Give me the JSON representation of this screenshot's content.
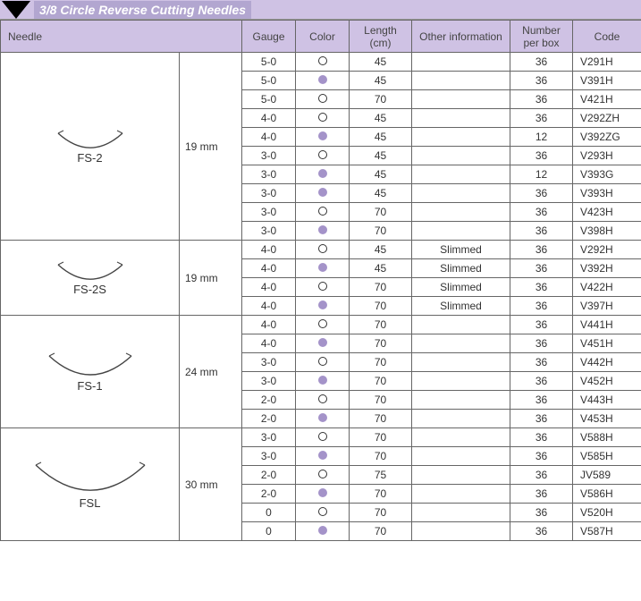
{
  "title": "3/8 Circle Reverse Cutting Needles",
  "columns": {
    "needle": "Needle",
    "gauge": "Gauge",
    "color": "Color",
    "length": "Length (cm)",
    "other": "Other information",
    "numPerBox": "Number per box",
    "code": "Code"
  },
  "colors": {
    "header_bg": "#cfc2e4",
    "title_bg": "#b2a6d0",
    "filled_circle": "#a493c9",
    "border": "#666666"
  },
  "groups": [
    {
      "needle_label": "FS-2",
      "size": "19 mm",
      "arc_width": 80,
      "rows": [
        {
          "gauge": "5-0",
          "color": "open",
          "length": "45",
          "other": "",
          "num": "36",
          "code": "V291H"
        },
        {
          "gauge": "5-0",
          "color": "filled",
          "length": "45",
          "other": "",
          "num": "36",
          "code": "V391H"
        },
        {
          "gauge": "5-0",
          "color": "open",
          "length": "70",
          "other": "",
          "num": "36",
          "code": "V421H"
        },
        {
          "gauge": "4-0",
          "color": "open",
          "length": "45",
          "other": "",
          "num": "36",
          "code": "V292ZH"
        },
        {
          "gauge": "4-0",
          "color": "filled",
          "length": "45",
          "other": "",
          "num": "12",
          "code": "V392ZG"
        },
        {
          "gauge": "3-0",
          "color": "open",
          "length": "45",
          "other": "",
          "num": "36",
          "code": "V293H"
        },
        {
          "gauge": "3-0",
          "color": "filled",
          "length": "45",
          "other": "",
          "num": "12",
          "code": "V393G"
        },
        {
          "gauge": "3-0",
          "color": "filled",
          "length": "45",
          "other": "",
          "num": "36",
          "code": "V393H"
        },
        {
          "gauge": "3-0",
          "color": "open",
          "length": "70",
          "other": "",
          "num": "36",
          "code": "V423H"
        },
        {
          "gauge": "3-0",
          "color": "filled",
          "length": "70",
          "other": "",
          "num": "36",
          "code": "V398H"
        }
      ]
    },
    {
      "needle_label": "FS-2S",
      "size": "19 mm",
      "arc_width": 80,
      "rows": [
        {
          "gauge": "4-0",
          "color": "open",
          "length": "45",
          "other": "Slimmed",
          "num": "36",
          "code": "V292H"
        },
        {
          "gauge": "4-0",
          "color": "filled",
          "length": "45",
          "other": "Slimmed",
          "num": "36",
          "code": "V392H"
        },
        {
          "gauge": "4-0",
          "color": "open",
          "length": "70",
          "other": "Slimmed",
          "num": "36",
          "code": "V422H"
        },
        {
          "gauge": "4-0",
          "color": "filled",
          "length": "70",
          "other": "Slimmed",
          "num": "36",
          "code": "V397H"
        }
      ]
    },
    {
      "needle_label": "FS-1",
      "size": "24 mm",
      "arc_width": 100,
      "rows": [
        {
          "gauge": "4-0",
          "color": "open",
          "length": "70",
          "other": "",
          "num": "36",
          "code": "V441H"
        },
        {
          "gauge": "4-0",
          "color": "filled",
          "length": "70",
          "other": "",
          "num": "36",
          "code": "V451H"
        },
        {
          "gauge": "3-0",
          "color": "open",
          "length": "70",
          "other": "",
          "num": "36",
          "code": "V442H"
        },
        {
          "gauge": "3-0",
          "color": "filled",
          "length": "70",
          "other": "",
          "num": "36",
          "code": "V452H"
        },
        {
          "gauge": "2-0",
          "color": "open",
          "length": "70",
          "other": "",
          "num": "36",
          "code": "V443H"
        },
        {
          "gauge": "2-0",
          "color": "filled",
          "length": "70",
          "other": "",
          "num": "36",
          "code": "V453H"
        }
      ]
    },
    {
      "needle_label": "FSL",
      "size": "30 mm",
      "arc_width": 130,
      "rows": [
        {
          "gauge": "3-0",
          "color": "open",
          "length": "70",
          "other": "",
          "num": "36",
          "code": "V588H"
        },
        {
          "gauge": "3-0",
          "color": "filled",
          "length": "70",
          "other": "",
          "num": "36",
          "code": "V585H"
        },
        {
          "gauge": "2-0",
          "color": "open",
          "length": "75",
          "other": "",
          "num": "36",
          "code": "JV589"
        },
        {
          "gauge": "2-0",
          "color": "filled",
          "length": "70",
          "other": "",
          "num": "36",
          "code": "V586H"
        },
        {
          "gauge": "0",
          "color": "open",
          "length": "70",
          "other": "",
          "num": "36",
          "code": "V520H"
        },
        {
          "gauge": "0",
          "color": "filled",
          "length": "70",
          "other": "",
          "num": "36",
          "code": "V587H"
        }
      ]
    }
  ]
}
